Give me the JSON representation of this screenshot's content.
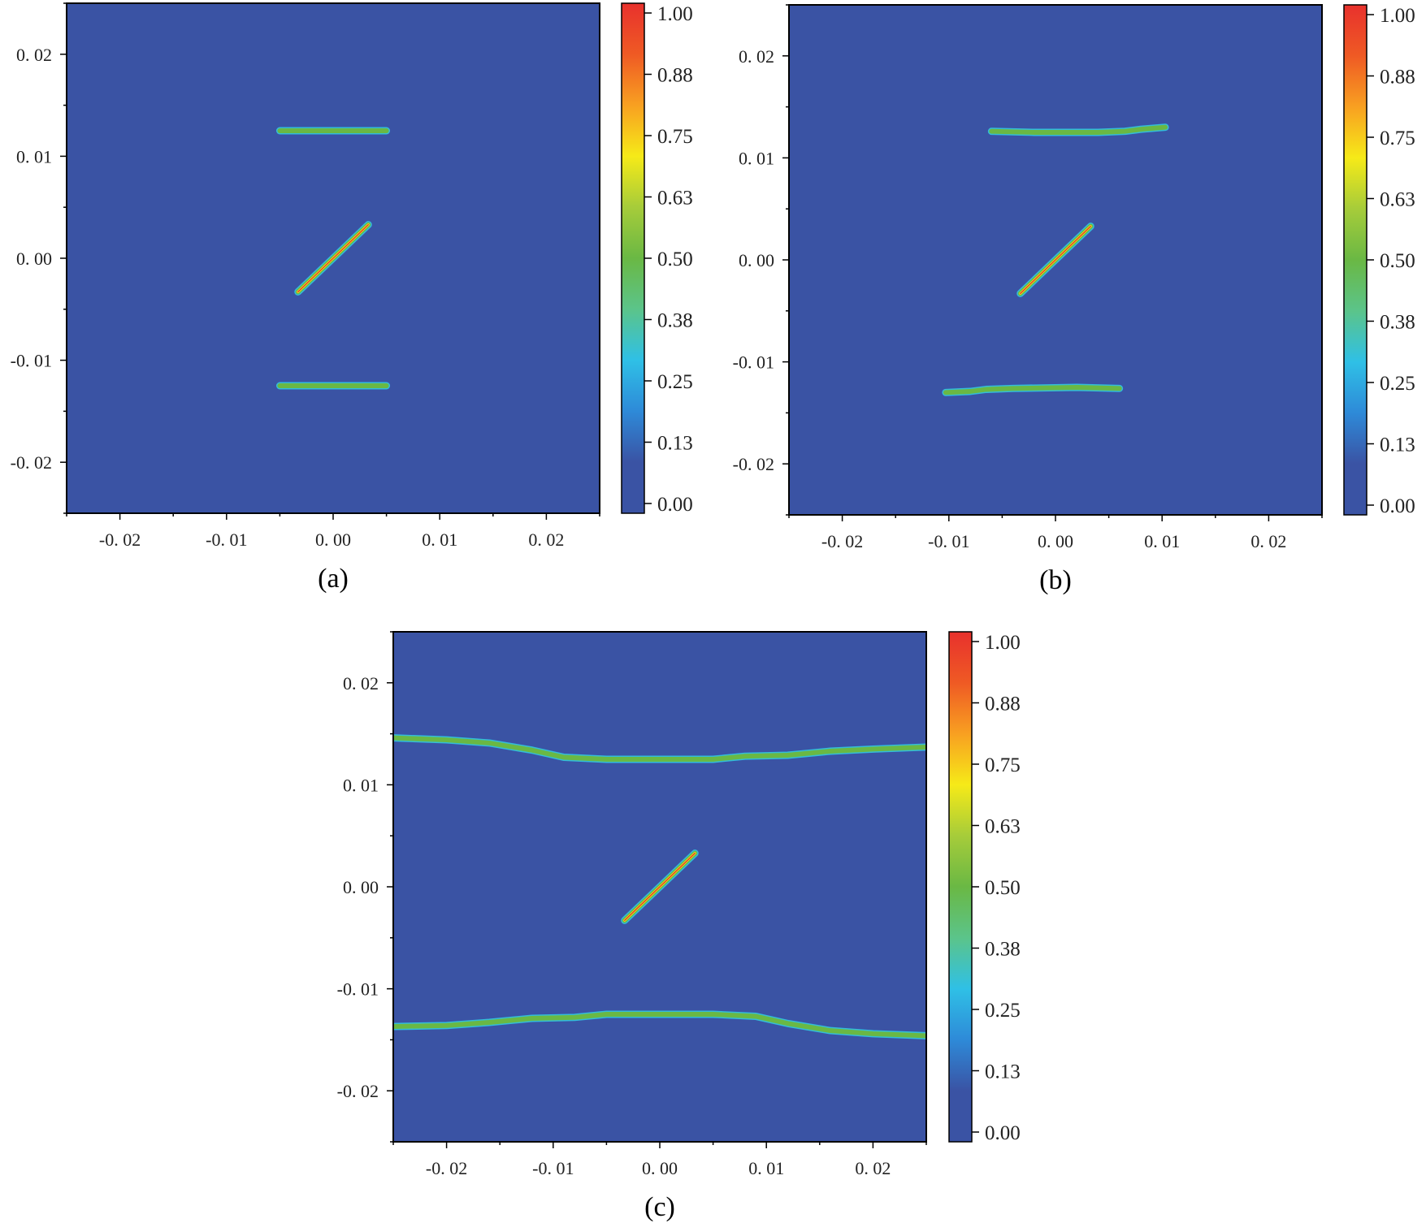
{
  "colors": {
    "background": "#3a53a4",
    "crack_mid": "#6ab844",
    "crack_edge": "#33bcd9",
    "crack_core": "#e8312d",
    "frame": "#000000"
  },
  "colorbar": {
    "labels": [
      "1.00",
      "0.88",
      "0.75",
      "0.63",
      "0.50",
      "0.38",
      "0.25",
      "0.13",
      "0.00"
    ],
    "stops": [
      "#3a53a4",
      "#3a53a4",
      "#2e8ad8",
      "#2fc0e6",
      "#5bc48a",
      "#6ab844",
      "#a6cc3a",
      "#f6ea18",
      "#f8a021",
      "#ef5a24",
      "#e8312d"
    ]
  },
  "chart_data": [
    {
      "type": "heatmap",
      "caption": "(a)",
      "xticks": [
        "-0. 02",
        "-0. 01",
        "0. 00",
        "0. 01",
        "0. 02"
      ],
      "yticks": [
        "0. 02",
        "0. 01",
        "0. 00",
        "-0. 01",
        "-0. 02"
      ],
      "xlim": [
        -0.025,
        0.025
      ],
      "ylim": [
        -0.025,
        0.025
      ],
      "value_range": [
        0,
        1
      ],
      "cracks": [
        {
          "kind": "straight",
          "points": [
            [
              -0.005,
              0.0125
            ],
            [
              0.005,
              0.0125
            ]
          ]
        },
        {
          "kind": "inclined",
          "points": [
            [
              -0.0033,
              -0.0033
            ],
            [
              0.0033,
              0.0033
            ]
          ]
        },
        {
          "kind": "straight",
          "points": [
            [
              -0.005,
              -0.0125
            ],
            [
              0.005,
              -0.0125
            ]
          ]
        }
      ]
    },
    {
      "type": "heatmap",
      "caption": "(b)",
      "xticks": [
        "-0. 02",
        "-0. 01",
        "0. 00",
        "0. 01",
        "0. 02"
      ],
      "yticks": [
        "0. 02",
        "0. 01",
        "0. 00",
        "-0. 01",
        "-0. 02"
      ],
      "xlim": [
        -0.025,
        0.025
      ],
      "ylim": [
        -0.025,
        0.025
      ],
      "value_range": [
        0,
        1
      ],
      "cracks": [
        {
          "kind": "propagated",
          "points": [
            [
              -0.006,
              0.0126
            ],
            [
              -0.002,
              0.0125
            ],
            [
              0.004,
              0.0125
            ],
            [
              0.0065,
              0.0126
            ],
            [
              0.008,
              0.0128
            ],
            [
              0.0103,
              0.013
            ]
          ]
        },
        {
          "kind": "inclined",
          "points": [
            [
              -0.0033,
              -0.0033
            ],
            [
              0.0033,
              0.0033
            ]
          ]
        },
        {
          "kind": "propagated",
          "points": [
            [
              -0.0103,
              -0.013
            ],
            [
              -0.008,
              -0.0129
            ],
            [
              -0.0065,
              -0.0127
            ],
            [
              -0.004,
              -0.0126
            ],
            [
              0.002,
              -0.0125
            ],
            [
              0.006,
              -0.0126
            ]
          ]
        }
      ]
    },
    {
      "type": "heatmap",
      "caption": "(c)",
      "xticks": [
        "-0. 02",
        "-0. 01",
        "0. 00",
        "0. 01",
        "0. 02"
      ],
      "yticks": [
        "0. 02",
        "0. 01",
        "0. 00",
        "-0. 01",
        "-0. 02"
      ],
      "xlim": [
        -0.025,
        0.025
      ],
      "ylim": [
        -0.025,
        0.025
      ],
      "value_range": [
        0,
        1
      ],
      "cracks": [
        {
          "kind": "propagated",
          "points": [
            [
              -0.025,
              0.0146
            ],
            [
              -0.02,
              0.0144
            ],
            [
              -0.016,
              0.0141
            ],
            [
              -0.012,
              0.0134
            ],
            [
              -0.009,
              0.0127
            ],
            [
              -0.005,
              0.0125
            ],
            [
              0.005,
              0.0125
            ],
            [
              0.008,
              0.0128
            ],
            [
              0.012,
              0.0129
            ],
            [
              0.016,
              0.0133
            ],
            [
              0.02,
              0.0135
            ],
            [
              0.025,
              0.0137
            ]
          ]
        },
        {
          "kind": "inclined",
          "points": [
            [
              -0.0033,
              -0.0033
            ],
            [
              0.0033,
              0.0033
            ]
          ]
        },
        {
          "kind": "propagated",
          "points": [
            [
              -0.025,
              -0.0137
            ],
            [
              -0.02,
              -0.0136
            ],
            [
              -0.016,
              -0.0133
            ],
            [
              -0.012,
              -0.0129
            ],
            [
              -0.008,
              -0.0128
            ],
            [
              -0.005,
              -0.0125
            ],
            [
              0.005,
              -0.0125
            ],
            [
              0.009,
              -0.0127
            ],
            [
              0.012,
              -0.0134
            ],
            [
              0.016,
              -0.0141
            ],
            [
              0.02,
              -0.0144
            ],
            [
              0.025,
              -0.0146
            ]
          ]
        }
      ]
    }
  ]
}
